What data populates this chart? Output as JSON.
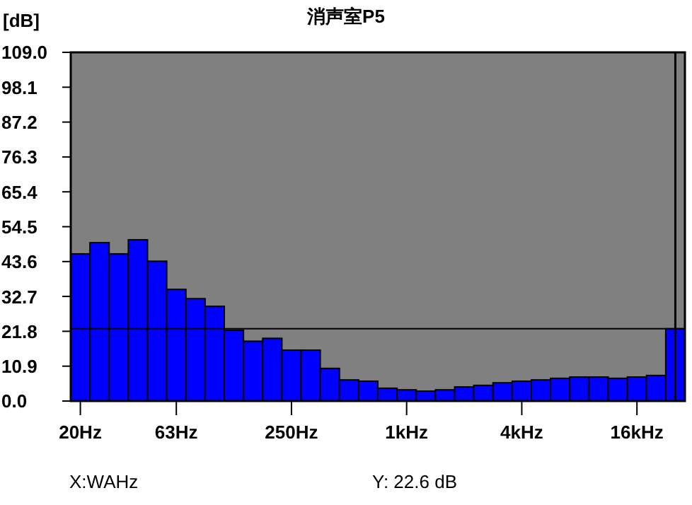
{
  "chart_data": {
    "type": "bar",
    "title": "消声室P5",
    "ylabel": "[dB]",
    "categories": [
      "20Hz",
      null,
      null,
      null,
      null,
      "63Hz",
      null,
      null,
      null,
      null,
      null,
      "250Hz",
      null,
      null,
      null,
      null,
      null,
      "1kHz",
      null,
      null,
      null,
      null,
      null,
      "4kHz",
      null,
      null,
      null,
      null,
      null,
      "16kHz",
      null,
      null
    ],
    "values": [
      46.0,
      49.5,
      46.0,
      50.4,
      43.7,
      34.9,
      32.0,
      29.6,
      22.1,
      18.7,
      19.6,
      15.9,
      15.9,
      10.2,
      6.6,
      6.2,
      4.0,
      3.5,
      3.1,
      3.5,
      4.4,
      4.9,
      5.7,
      6.2,
      6.6,
      7.1,
      7.5,
      7.5,
      7.1,
      7.5,
      8.0,
      22.6
    ],
    "color": "#0000ff",
    "ylim": [
      0,
      109
    ],
    "yticks": [
      {
        "value": 0,
        "label": "0.0"
      },
      10.9,
      21.8,
      32.7,
      43.6,
      54.5,
      65.4,
      76.3,
      87.2,
      98.1,
      {
        "value": 109,
        "label": "109.0"
      }
    ],
    "ref_lines": [
      {
        "axis": "y",
        "value": 22.6,
        "color": "#000000"
      }
    ],
    "annotations": [
      "X:WAHz",
      "Y: 22.6 dB"
    ]
  }
}
